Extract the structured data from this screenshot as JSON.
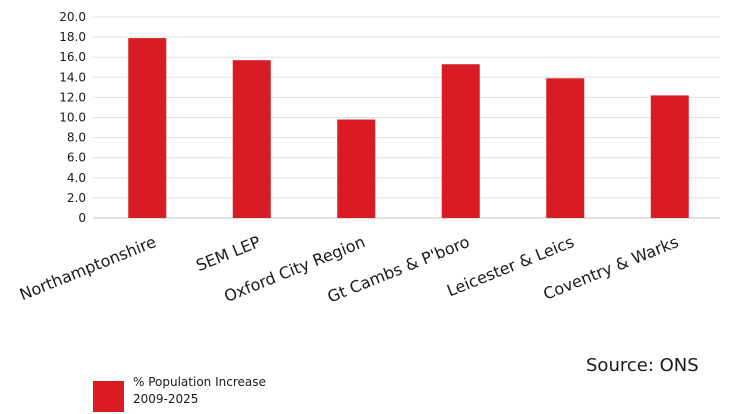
{
  "chart_data": {
    "type": "bar",
    "categories": [
      "Northamptonshire",
      "SEM LEP",
      "Oxford City Region",
      "Gt Cambs & P'boro",
      "Leicester & Leics",
      "Coventry & Warks"
    ],
    "series": [
      {
        "name": "% Population Increase 2009-2025",
        "values": [
          17.9,
          15.7,
          9.8,
          15.3,
          13.9,
          12.2
        ]
      }
    ],
    "ylim": [
      0,
      20
    ],
    "yticks": [
      "20.0",
      "18.0",
      "16.0",
      "14.0",
      "12.0",
      "10.0",
      "8.0",
      "6.0",
      "4.0",
      "2.0",
      "0"
    ],
    "grid": true,
    "bar_color": "#d91c24",
    "legend": {
      "line1": "% Population Increase",
      "line2": "2009-2025",
      "placement": "bottom-left"
    }
  },
  "source": "Source: ONS"
}
